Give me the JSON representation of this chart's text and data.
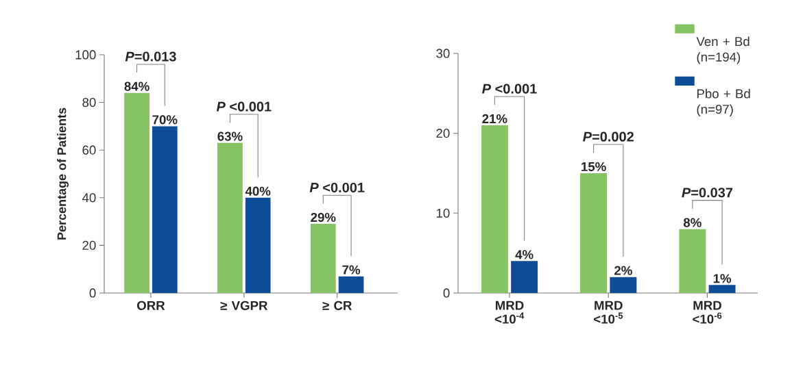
{
  "chart_data": [
    {
      "type": "bar",
      "ylabel": "Percentage of Patients",
      "categories": [
        "ORR",
        "≥ VGPR",
        "≥ CR"
      ],
      "ylim": [
        0,
        100
      ],
      "yticks": [
        0,
        20,
        40,
        60,
        80,
        100
      ],
      "series": [
        {
          "color": "#84c263",
          "values": [
            84,
            63,
            29
          ],
          "value_labels": [
            "84%",
            "63%",
            "29%"
          ]
        },
        {
          "color": "#0f4c97",
          "values": [
            70,
            40,
            7
          ],
          "value_labels": [
            "70%",
            "40%",
            "7%"
          ]
        }
      ],
      "annotations": [
        "*P*=0.013",
        "*P* <0.001",
        "*P* <0.001"
      ]
    },
    {
      "type": "bar",
      "categories": [
        "MRD <10$^{-4}$",
        "MRD <10$^{-5}$",
        "MRD <10$^{-6}$"
      ],
      "ylim": [
        0,
        30
      ],
      "yticks": [
        0,
        10,
        20,
        30
      ],
      "legend": "top right",
      "series": [
        {
          "name": "Ven + Bd (n=194)",
          "color": "#84c263",
          "values": [
            21,
            15,
            8
          ],
          "value_labels": [
            "21%",
            "15%",
            "8%"
          ]
        },
        {
          "name": "Pbo + Bd (n=97)",
          "color": "#0f4c97",
          "values": [
            4,
            2,
            1
          ],
          "value_labels": [
            "4%",
            "2%",
            "1%"
          ]
        }
      ],
      "annotations": [
        "*P* <0.001",
        "*P*=0.002",
        "*P*=0.037"
      ]
    }
  ]
}
